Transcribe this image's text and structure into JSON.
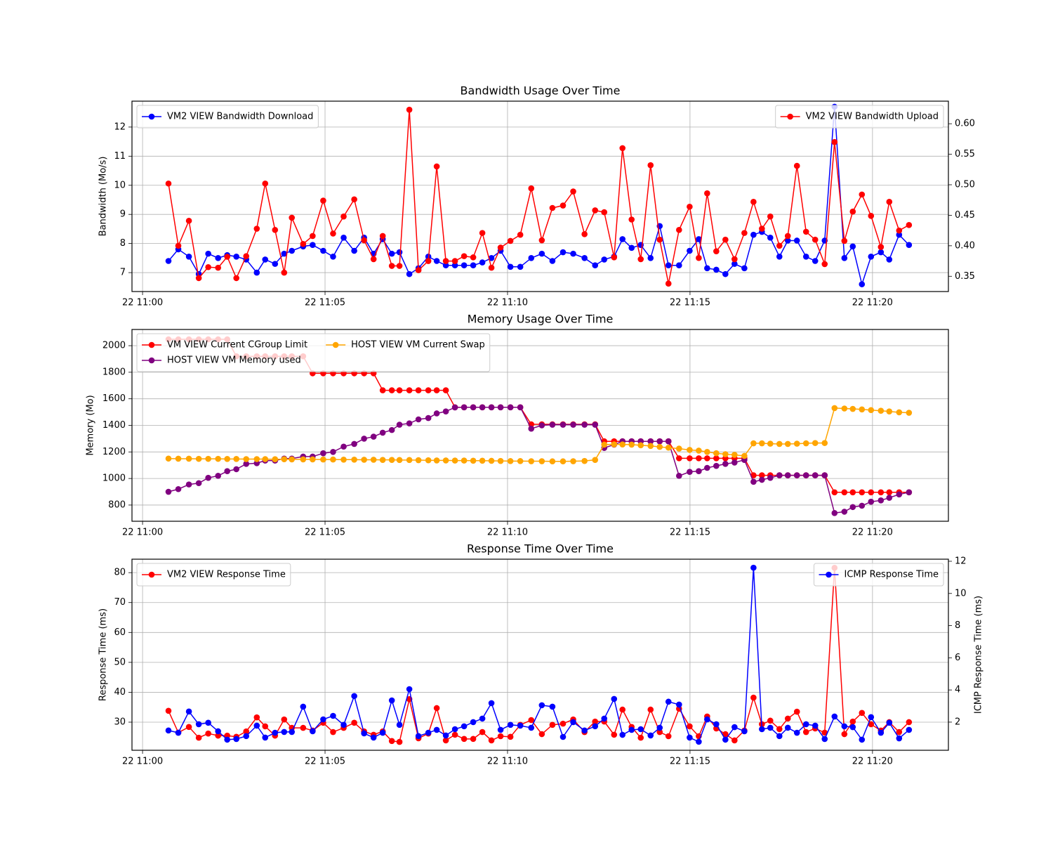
{
  "chart_data": [
    {
      "type": "line",
      "title": "Bandwidth Usage Over Time",
      "ylabel": "Bandwidth (Mo/s)",
      "grid": true,
      "legend": "upper left",
      "y2_legend": "upper right",
      "x": [
        0.71,
        0.98,
        1.27,
        1.54,
        1.8,
        2.07,
        2.32,
        2.57,
        2.84,
        3.13,
        3.36,
        3.63,
        3.88,
        4.09,
        4.4,
        4.66,
        4.95,
        5.22,
        5.51,
        5.8,
        6.07,
        6.33,
        6.58,
        6.83,
        7.04,
        7.31,
        7.56,
        7.83,
        8.06,
        8.31,
        8.56,
        8.81,
        9.06,
        9.31,
        9.56,
        9.81,
        10.08,
        10.35,
        10.65,
        10.94,
        11.23,
        11.52,
        11.8,
        12.11,
        12.4,
        12.65,
        12.92,
        13.15,
        13.4,
        13.65,
        13.92,
        14.17,
        14.41,
        14.7,
        14.99,
        15.24,
        15.47,
        15.72,
        15.97,
        16.22,
        16.49,
        16.74,
        16.97,
        17.2,
        17.45,
        17.68,
        17.93,
        18.18,
        18.43,
        18.69,
        18.96,
        19.23,
        19.46,
        19.71,
        19.96,
        20.23,
        20.46,
        20.73,
        21.0
      ],
      "xlim": [
        -0.29,
        22.08
      ],
      "xticks": [
        {
          "value": 0,
          "label": "22 11:00"
        },
        {
          "value": 5,
          "label": "22 11:05"
        },
        {
          "value": 10,
          "label": "22 11:10"
        },
        {
          "value": 15,
          "label": "22 11:15"
        },
        {
          "value": 20,
          "label": "22 11:20"
        }
      ],
      "ylim": [
        6.35,
        12.89
      ],
      "yticks": [
        7,
        8,
        9,
        10,
        11,
        12
      ],
      "y2lim": [
        0.325,
        0.637
      ],
      "y2ticks": [
        0.35,
        {
          "value": 0.4,
          "label": "0.40"
        },
        0.45,
        {
          "value": 0.5,
          "label": "0.50"
        },
        0.55,
        {
          "value": 0.6,
          "label": "0.60"
        }
      ],
      "series": [
        {
          "name": "VM2 VIEW Bandwidth Download",
          "color": "#0000ff",
          "values": [
            7.4,
            7.8,
            7.55,
            6.95,
            7.65,
            7.5,
            7.6,
            7.55,
            7.45,
            7.0,
            7.45,
            7.3,
            7.65,
            7.75,
            7.9,
            7.95,
            7.75,
            7.55,
            8.2,
            7.75,
            8.2,
            7.65,
            8.15,
            7.65,
            7.7,
            6.95,
            7.15,
            7.55,
            7.4,
            7.25,
            7.25,
            7.25,
            7.25,
            7.35,
            7.5,
            7.75,
            7.2,
            7.2,
            7.5,
            7.65,
            7.4,
            7.7,
            7.65,
            7.5,
            7.25,
            7.45,
            7.55,
            8.15,
            7.85,
            7.95,
            7.5,
            8.6,
            7.25,
            7.25,
            7.75,
            8.15,
            7.15,
            7.1,
            6.95,
            7.3,
            7.15,
            8.3,
            8.4,
            8.2,
            7.55,
            8.1,
            8.1,
            7.55,
            7.4,
            8.1,
            12.7,
            7.5,
            7.9,
            6.6,
            7.55,
            7.7,
            7.45,
            8.3,
            7.95
          ]
        },
        {
          "name": "VM2 VIEW Bandwidth Upload",
          "color": "#ff0000",
          "axis": "y2",
          "values": [
            0.502,
            0.4,
            0.441,
            0.347,
            0.365,
            0.364,
            0.382,
            0.347,
            0.383,
            0.428,
            0.502,
            0.426,
            0.356,
            0.446,
            0.403,
            0.416,
            0.474,
            0.42,
            0.448,
            0.476,
            0.409,
            0.378,
            0.416,
            0.367,
            0.367,
            0.623,
            0.36,
            0.375,
            0.53,
            0.375,
            0.375,
            0.383,
            0.381,
            0.421,
            0.364,
            0.397,
            0.408,
            0.418,
            0.494,
            0.409,
            0.462,
            0.466,
            0.489,
            0.419,
            0.458,
            0.455,
            0.381,
            0.56,
            0.443,
            0.378,
            0.532,
            0.41,
            0.338,
            0.426,
            0.464,
            0.38,
            0.486,
            0.391,
            0.41,
            0.378,
            0.421,
            0.472,
            0.428,
            0.448,
            0.4,
            0.416,
            0.531,
            0.423,
            0.41,
            0.37,
            0.57,
            0.408,
            0.456,
            0.484,
            0.449,
            0.398,
            0.472,
            0.425,
            0.434
          ]
        }
      ]
    },
    {
      "type": "line",
      "title": "Memory Usage Over Time",
      "ylabel": "Memory (Mo)",
      "grid": true,
      "legend": "upper left",
      "legend_columns": 2,
      "x": [
        0.71,
        0.98,
        1.27,
        1.54,
        1.8,
        2.07,
        2.32,
        2.57,
        2.84,
        3.13,
        3.36,
        3.63,
        3.88,
        4.09,
        4.4,
        4.66,
        4.95,
        5.22,
        5.51,
        5.8,
        6.07,
        6.33,
        6.58,
        6.83,
        7.04,
        7.31,
        7.56,
        7.83,
        8.06,
        8.31,
        8.56,
        8.81,
        9.06,
        9.31,
        9.56,
        9.81,
        10.08,
        10.35,
        10.65,
        10.94,
        11.23,
        11.52,
        11.8,
        12.11,
        12.4,
        12.65,
        12.92,
        13.15,
        13.4,
        13.65,
        13.92,
        14.17,
        14.41,
        14.7,
        14.99,
        15.24,
        15.47,
        15.72,
        15.97,
        16.22,
        16.49,
        16.74,
        16.97,
        17.2,
        17.45,
        17.68,
        17.93,
        18.18,
        18.43,
        18.69,
        18.96,
        19.23,
        19.46,
        19.71,
        19.96,
        20.23,
        20.46,
        20.73,
        21.0
      ],
      "xlim": [
        -0.29,
        22.08
      ],
      "xticks": [
        {
          "value": 0,
          "label": "22 11:00"
        },
        {
          "value": 5,
          "label": "22 11:05"
        },
        {
          "value": 10,
          "label": "22 11:10"
        },
        {
          "value": 15,
          "label": "22 11:15"
        },
        {
          "value": 20,
          "label": "22 11:20"
        }
      ],
      "ylim": [
        678,
        2122
      ],
      "yticks": [
        800,
        1000,
        1200,
        1400,
        1600,
        1800,
        2000
      ],
      "series": [
        {
          "name": "VM VIEW Current CGroup Limit",
          "color": "#ff0000",
          "values": [
            2048,
            2048,
            2048,
            2048,
            2048,
            2048,
            2048,
            1920,
            1920,
            1920,
            1920,
            1920,
            1920,
            1920,
            1920,
            1792,
            1792,
            1792,
            1792,
            1792,
            1792,
            1792,
            1664,
            1664,
            1664,
            1664,
            1664,
            1664,
            1664,
            1664,
            1536,
            1536,
            1536,
            1536,
            1536,
            1536,
            1536,
            1536,
            1408,
            1408,
            1408,
            1408,
            1408,
            1408,
            1408,
            1280,
            1280,
            1280,
            1280,
            1280,
            1280,
            1280,
            1280,
            1152,
            1152,
            1152,
            1152,
            1152,
            1152,
            1152,
            1152,
            1024,
            1024,
            1024,
            1024,
            1024,
            1024,
            1024,
            1024,
            1024,
            896,
            896,
            896,
            896,
            896,
            896,
            896,
            896,
            896
          ]
        },
        {
          "name": "HOST VIEW VM Memory used",
          "color": "#800080",
          "values": [
            900,
            920,
            955,
            965,
            1005,
            1020,
            1055,
            1070,
            1110,
            1115,
            1135,
            1135,
            1150,
            1150,
            1165,
            1165,
            1190,
            1200,
            1240,
            1260,
            1300,
            1315,
            1345,
            1365,
            1405,
            1415,
            1445,
            1455,
            1490,
            1505,
            1535,
            1536,
            1536,
            1536,
            1536,
            1536,
            1536,
            1536,
            1375,
            1400,
            1405,
            1405,
            1405,
            1405,
            1405,
            1230,
            1255,
            1280,
            1280,
            1280,
            1280,
            1280,
            1280,
            1020,
            1050,
            1055,
            1080,
            1095,
            1110,
            1120,
            1140,
            975,
            990,
            1005,
            1024,
            1024,
            1024,
            1024,
            1024,
            1024,
            740,
            750,
            785,
            795,
            825,
            835,
            855,
            880,
            896
          ]
        },
        {
          "name": "HOST VIEW VM Current Swap",
          "color": "#ffa500",
          "values": [
            1150,
            1149,
            1149,
            1148,
            1148,
            1148,
            1147,
            1147,
            1146,
            1146,
            1146,
            1145,
            1145,
            1144,
            1144,
            1144,
            1143,
            1143,
            1142,
            1142,
            1141,
            1141,
            1140,
            1140,
            1139,
            1139,
            1138,
            1137,
            1136,
            1136,
            1135,
            1135,
            1134,
            1134,
            1133,
            1132,
            1131,
            1131,
            1130,
            1130,
            1129,
            1129,
            1130,
            1132,
            1140,
            1255,
            1257,
            1256,
            1255,
            1250,
            1245,
            1238,
            1232,
            1225,
            1215,
            1210,
            1200,
            1190,
            1183,
            1178,
            1170,
            1265,
            1265,
            1262,
            1260,
            1260,
            1262,
            1265,
            1267,
            1267,
            1530,
            1527,
            1524,
            1520,
            1515,
            1510,
            1505,
            1498,
            1495
          ]
        }
      ]
    },
    {
      "type": "line",
      "title": "Response Time Over Time",
      "ylabel": "Response Time (ms)",
      "y2label": "ICMP Response Time (ms)",
      "grid": true,
      "legend": "upper left",
      "y2_legend": "upper right",
      "x": [
        0.71,
        0.98,
        1.27,
        1.54,
        1.8,
        2.07,
        2.32,
        2.57,
        2.84,
        3.13,
        3.36,
        3.63,
        3.88,
        4.09,
        4.4,
        4.66,
        4.95,
        5.22,
        5.51,
        5.8,
        6.07,
        6.33,
        6.58,
        6.83,
        7.04,
        7.31,
        7.56,
        7.83,
        8.06,
        8.31,
        8.56,
        8.81,
        9.06,
        9.31,
        9.56,
        9.81,
        10.08,
        10.35,
        10.65,
        10.94,
        11.23,
        11.52,
        11.8,
        12.11,
        12.4,
        12.65,
        12.92,
        13.15,
        13.4,
        13.65,
        13.92,
        14.17,
        14.41,
        14.7,
        14.99,
        15.24,
        15.47,
        15.72,
        15.97,
        16.22,
        16.49,
        16.74,
        16.97,
        17.2,
        17.45,
        17.68,
        17.93,
        18.18,
        18.43,
        18.69,
        18.96,
        19.23,
        19.46,
        19.71,
        19.96,
        20.23,
        20.46,
        20.73,
        21.0
      ],
      "xlim": [
        -0.29,
        22.08
      ],
      "xticks": [
        {
          "value": 0,
          "label": "22 11:00"
        },
        {
          "value": 5,
          "label": "22 11:05"
        },
        {
          "value": 10,
          "label": "22 11:10"
        },
        {
          "value": 15,
          "label": "22 11:15"
        },
        {
          "value": 20,
          "label": "22 11:20"
        }
      ],
      "ylim": [
        20.6,
        84.5
      ],
      "yticks": [
        30,
        40,
        50,
        60,
        70,
        80
      ],
      "y2lim": [
        0.25,
        12.13
      ],
      "y2ticks": [
        2,
        4,
        6,
        8,
        10,
        12
      ],
      "series": [
        {
          "name": "VM2 VIEW Response Time",
          "color": "#ff0000",
          "values": [
            33.8,
            26.5,
            28.4,
            24.8,
            26.2,
            25.5,
            25.5,
            25.1,
            26.9,
            31.6,
            28.6,
            25.5,
            30.9,
            28.1,
            28.1,
            27.2,
            29.8,
            26.7,
            28.1,
            29.8,
            26.9,
            25.8,
            26.9,
            23.7,
            23.4,
            37.7,
            24.6,
            26.2,
            34.7,
            23.9,
            25.8,
            24.4,
            24.4,
            26.7,
            23.9,
            25.3,
            25.1,
            29.1,
            30.7,
            26.0,
            29.1,
            29.5,
            30.9,
            26.7,
            30.2,
            30.2,
            25.8,
            34.2,
            28.4,
            24.8,
            34.2,
            26.7,
            25.3,
            34.5,
            28.6,
            25.3,
            31.9,
            27.9,
            26.0,
            23.9,
            27.2,
            38.2,
            29.3,
            30.5,
            27.7,
            31.2,
            33.5,
            26.7,
            27.9,
            26.5,
            81.6,
            26.0,
            30.2,
            33.1,
            29.3,
            27.2,
            30.0,
            26.7,
            30.0
          ]
        },
        {
          "name": "ICMP Response Time",
          "color": "#0000ff",
          "axis": "y2",
          "values": [
            1.48,
            1.34,
            2.66,
            1.87,
            1.96,
            1.43,
            0.91,
            0.95,
            1.13,
            1.78,
            1.04,
            1.34,
            1.39,
            1.39,
            2.96,
            1.43,
            2.17,
            2.39,
            1.83,
            3.62,
            1.3,
            1.04,
            1.34,
            3.35,
            1.83,
            4.05,
            1.13,
            1.34,
            1.52,
            1.17,
            1.56,
            1.74,
            2.0,
            2.22,
            3.18,
            1.52,
            1.83,
            1.78,
            1.65,
            3.05,
            2.96,
            1.08,
            2.0,
            1.48,
            1.74,
            2.22,
            3.44,
            1.21,
            1.52,
            1.56,
            1.17,
            1.65,
            3.27,
            3.09,
            1.04,
            0.78,
            2.17,
            1.87,
            0.91,
            1.69,
            1.43,
            11.6,
            1.56,
            1.65,
            1.13,
            1.65,
            1.34,
            1.87,
            1.78,
            0.95,
            2.35,
            1.74,
            1.69,
            0.91,
            2.31,
            1.34,
            1.96,
            0.99,
            1.52
          ]
        }
      ]
    }
  ]
}
